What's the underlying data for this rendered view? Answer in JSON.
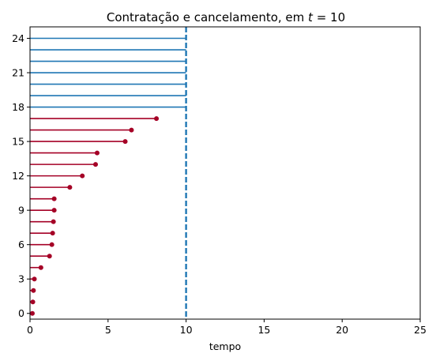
{
  "chart_data": {
    "type": "lollipop-timeline",
    "title_prefix": "Contratação e cancelamento, em ",
    "title_var": "t",
    "title_suffix": " = 10",
    "xlabel": "tempo",
    "ylabel": "",
    "xlim": [
      0,
      25
    ],
    "ylim": [
      -0.5,
      25
    ],
    "x_ticks": [
      0,
      5,
      10,
      15,
      20,
      25
    ],
    "y_ticks": [
      0,
      3,
      6,
      9,
      12,
      15,
      18,
      21,
      24
    ],
    "grid": false,
    "current_time": 10,
    "colors": {
      "cancelled": "#a50026",
      "active": "#1f77b4",
      "vline": "#1f77b4"
    },
    "cancelled": [
      {
        "id": 0,
        "end": 0.15
      },
      {
        "id": 1,
        "end": 0.18
      },
      {
        "id": 2,
        "end": 0.22
      },
      {
        "id": 3,
        "end": 0.28
      },
      {
        "id": 4,
        "end": 0.7
      },
      {
        "id": 5,
        "end": 1.25
      },
      {
        "id": 6,
        "end": 1.4
      },
      {
        "id": 7,
        "end": 1.45
      },
      {
        "id": 8,
        "end": 1.5
      },
      {
        "id": 9,
        "end": 1.55
      },
      {
        "id": 10,
        "end": 1.55
      },
      {
        "id": 11,
        "end": 2.55
      },
      {
        "id": 12,
        "end": 3.35
      },
      {
        "id": 13,
        "end": 4.2
      },
      {
        "id": 14,
        "end": 4.3
      },
      {
        "id": 15,
        "end": 6.1
      },
      {
        "id": 16,
        "end": 6.5
      },
      {
        "id": 17,
        "end": 8.1
      }
    ],
    "active": [
      {
        "id": 18,
        "end": 10
      },
      {
        "id": 19,
        "end": 10
      },
      {
        "id": 20,
        "end": 10
      },
      {
        "id": 21,
        "end": 10
      },
      {
        "id": 22,
        "end": 10
      },
      {
        "id": 23,
        "end": 10
      },
      {
        "id": 24,
        "end": 10
      }
    ]
  }
}
